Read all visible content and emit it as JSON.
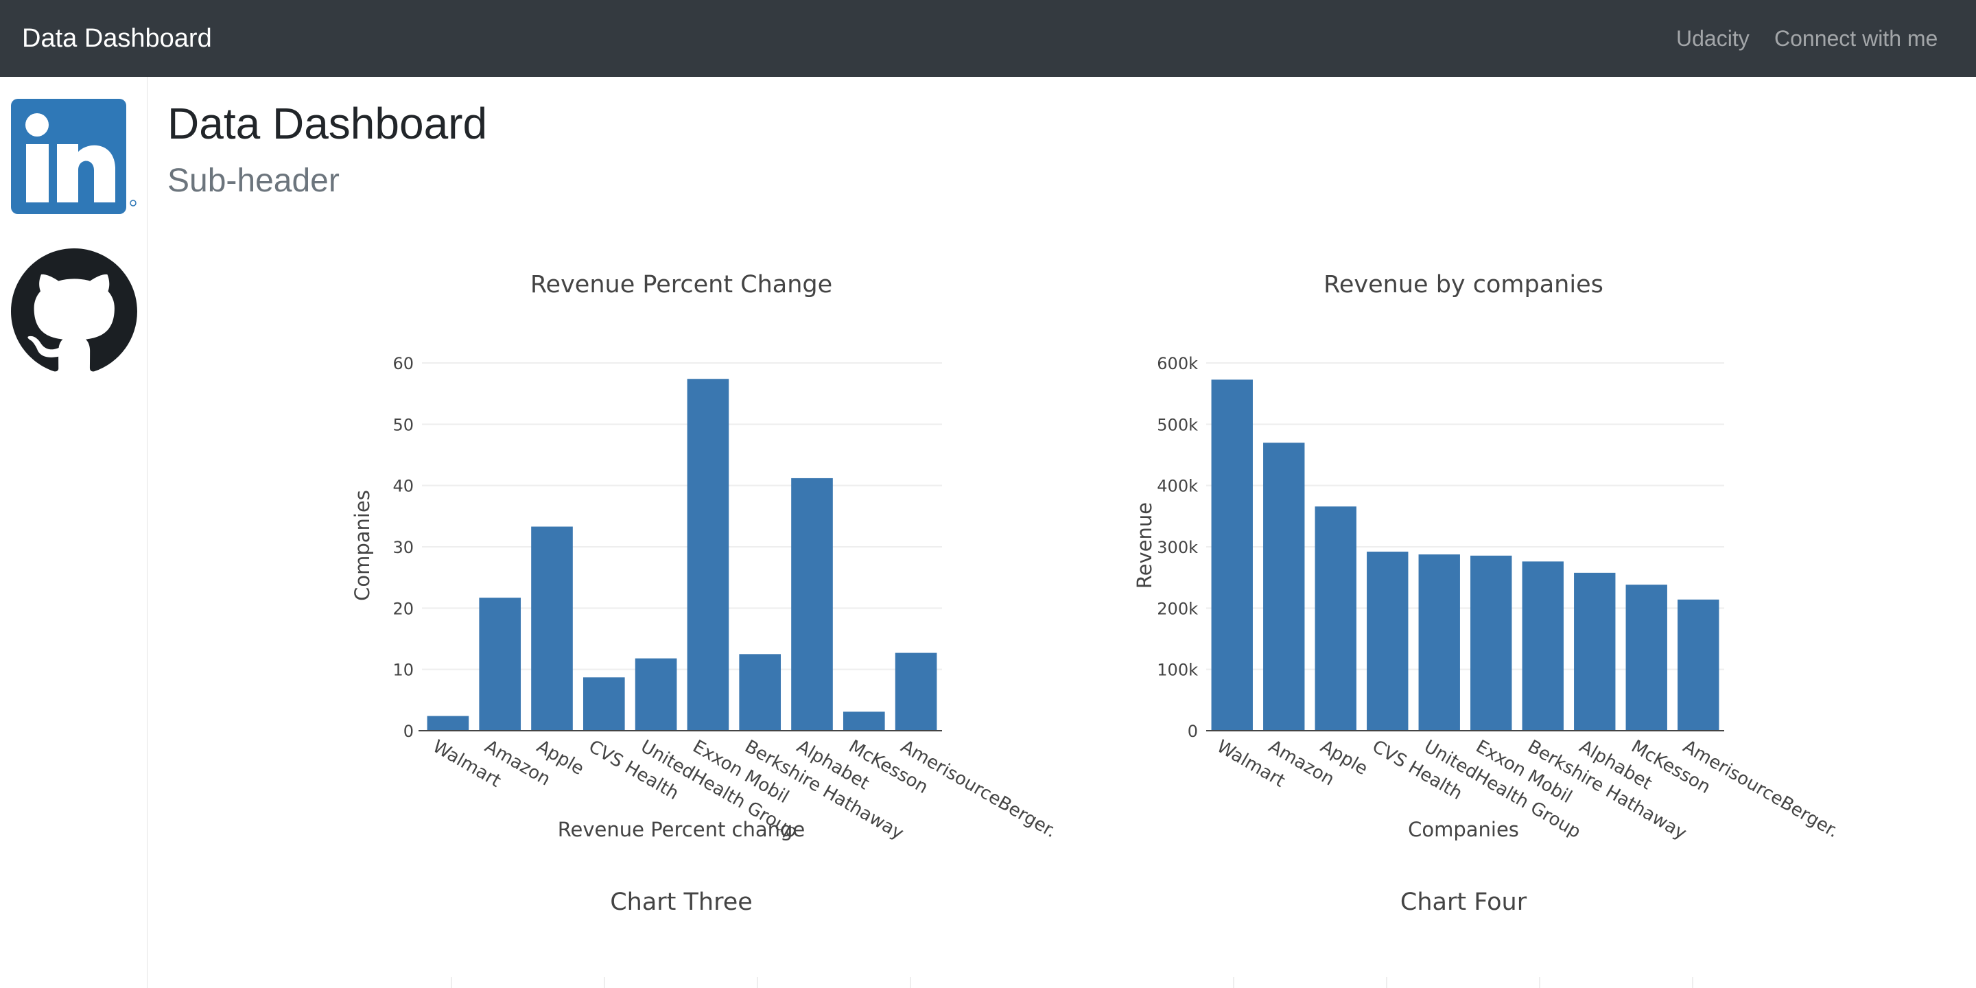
{
  "nav": {
    "brand": "Data Dashboard",
    "links": [
      "Udacity",
      "Connect with me"
    ]
  },
  "sidebar": {
    "icons": [
      "linkedin-icon",
      "github-icon"
    ]
  },
  "header": {
    "title": "Data Dashboard",
    "subtitle": "Sub-header"
  },
  "colors": {
    "navbar": "#343a40",
    "bar": "#3a77b0"
  },
  "chart_data": [
    {
      "type": "bar",
      "title": "Revenue Percent Change",
      "xlabel": "Revenue Percent change",
      "ylabel": "Companies",
      "categories": [
        "Walmart",
        "Amazon",
        "Apple",
        "CVS Health",
        "UnitedHealth Group",
        "Exxon Mobil",
        "Berkshire Hathaway",
        "Alphabet",
        "McKesson",
        "AmerisourceBerger."
      ],
      "values": [
        2.4,
        21.7,
        33.3,
        8.7,
        11.8,
        57.4,
        12.5,
        41.2,
        3.1,
        12.7
      ],
      "ylim": [
        0,
        60
      ],
      "yticks": [
        0,
        10,
        20,
        30,
        40,
        50,
        60
      ],
      "ytick_labels": [
        "0",
        "10",
        "20",
        "30",
        "40",
        "50",
        "60"
      ],
      "grid": true
    },
    {
      "type": "bar",
      "title": "Revenue by companies",
      "xlabel": "Companies",
      "ylabel": "Revenue",
      "categories": [
        "Walmart",
        "Amazon",
        "Apple",
        "CVS Health",
        "UnitedHealth Group",
        "Exxon Mobil",
        "Berkshire Hathaway",
        "Alphabet",
        "McKesson",
        "AmerisourceBerger."
      ],
      "values": [
        572754,
        469822,
        365817,
        292111,
        287597,
        285640,
        276094,
        257637,
        238228,
        213989
      ],
      "ylim": [
        0,
        600000
      ],
      "yticks": [
        0,
        100000,
        200000,
        300000,
        400000,
        500000,
        600000
      ],
      "ytick_labels": [
        "0",
        "100k",
        "200k",
        "300k",
        "400k",
        "500k",
        "600k"
      ],
      "grid": true
    },
    {
      "type": "bar",
      "title": "Chart Three"
    },
    {
      "type": "bar",
      "title": "Chart Four"
    }
  ]
}
